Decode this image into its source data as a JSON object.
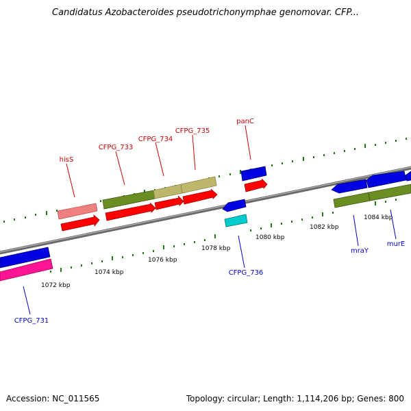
{
  "header": {
    "title": "Candidatus Azobacteroides pseudotrichonymphae genomovar. CFP..."
  },
  "footer": {
    "accession": "Accession: NC_011565",
    "topology": "Topology: circular; Length: 1,114,206 bp; Genes: 800"
  },
  "colors": {
    "backbone": "#8a8a8a",
    "tick": "#1f7a12",
    "label_red": "#cc0000",
    "label_blue": "#0000cc",
    "red": "#ff0000",
    "blue": "#0000e0",
    "pink": "#f080a0",
    "magenta": "#ff1493",
    "olive": "#6b8e23",
    "khaki": "#bdb76b",
    "cyan": "#00cccc"
  },
  "scale_labels": [
    "1072 kbp",
    "1074 kbp",
    "1076 kbp",
    "1078 kbp",
    "1080 kbp",
    "1082 kbp",
    "1084 kbp"
  ],
  "gene_labels": {
    "hisS": "hisS",
    "cfpg733": "CFPG_733",
    "cfpg734": "CFPG_734",
    "cfpg735": "CFPG_735",
    "panC": "panC",
    "cfpg736": "CFPG_736",
    "cfpg731": "CFPG_731",
    "mraY": "mraY",
    "murE": "murE"
  }
}
